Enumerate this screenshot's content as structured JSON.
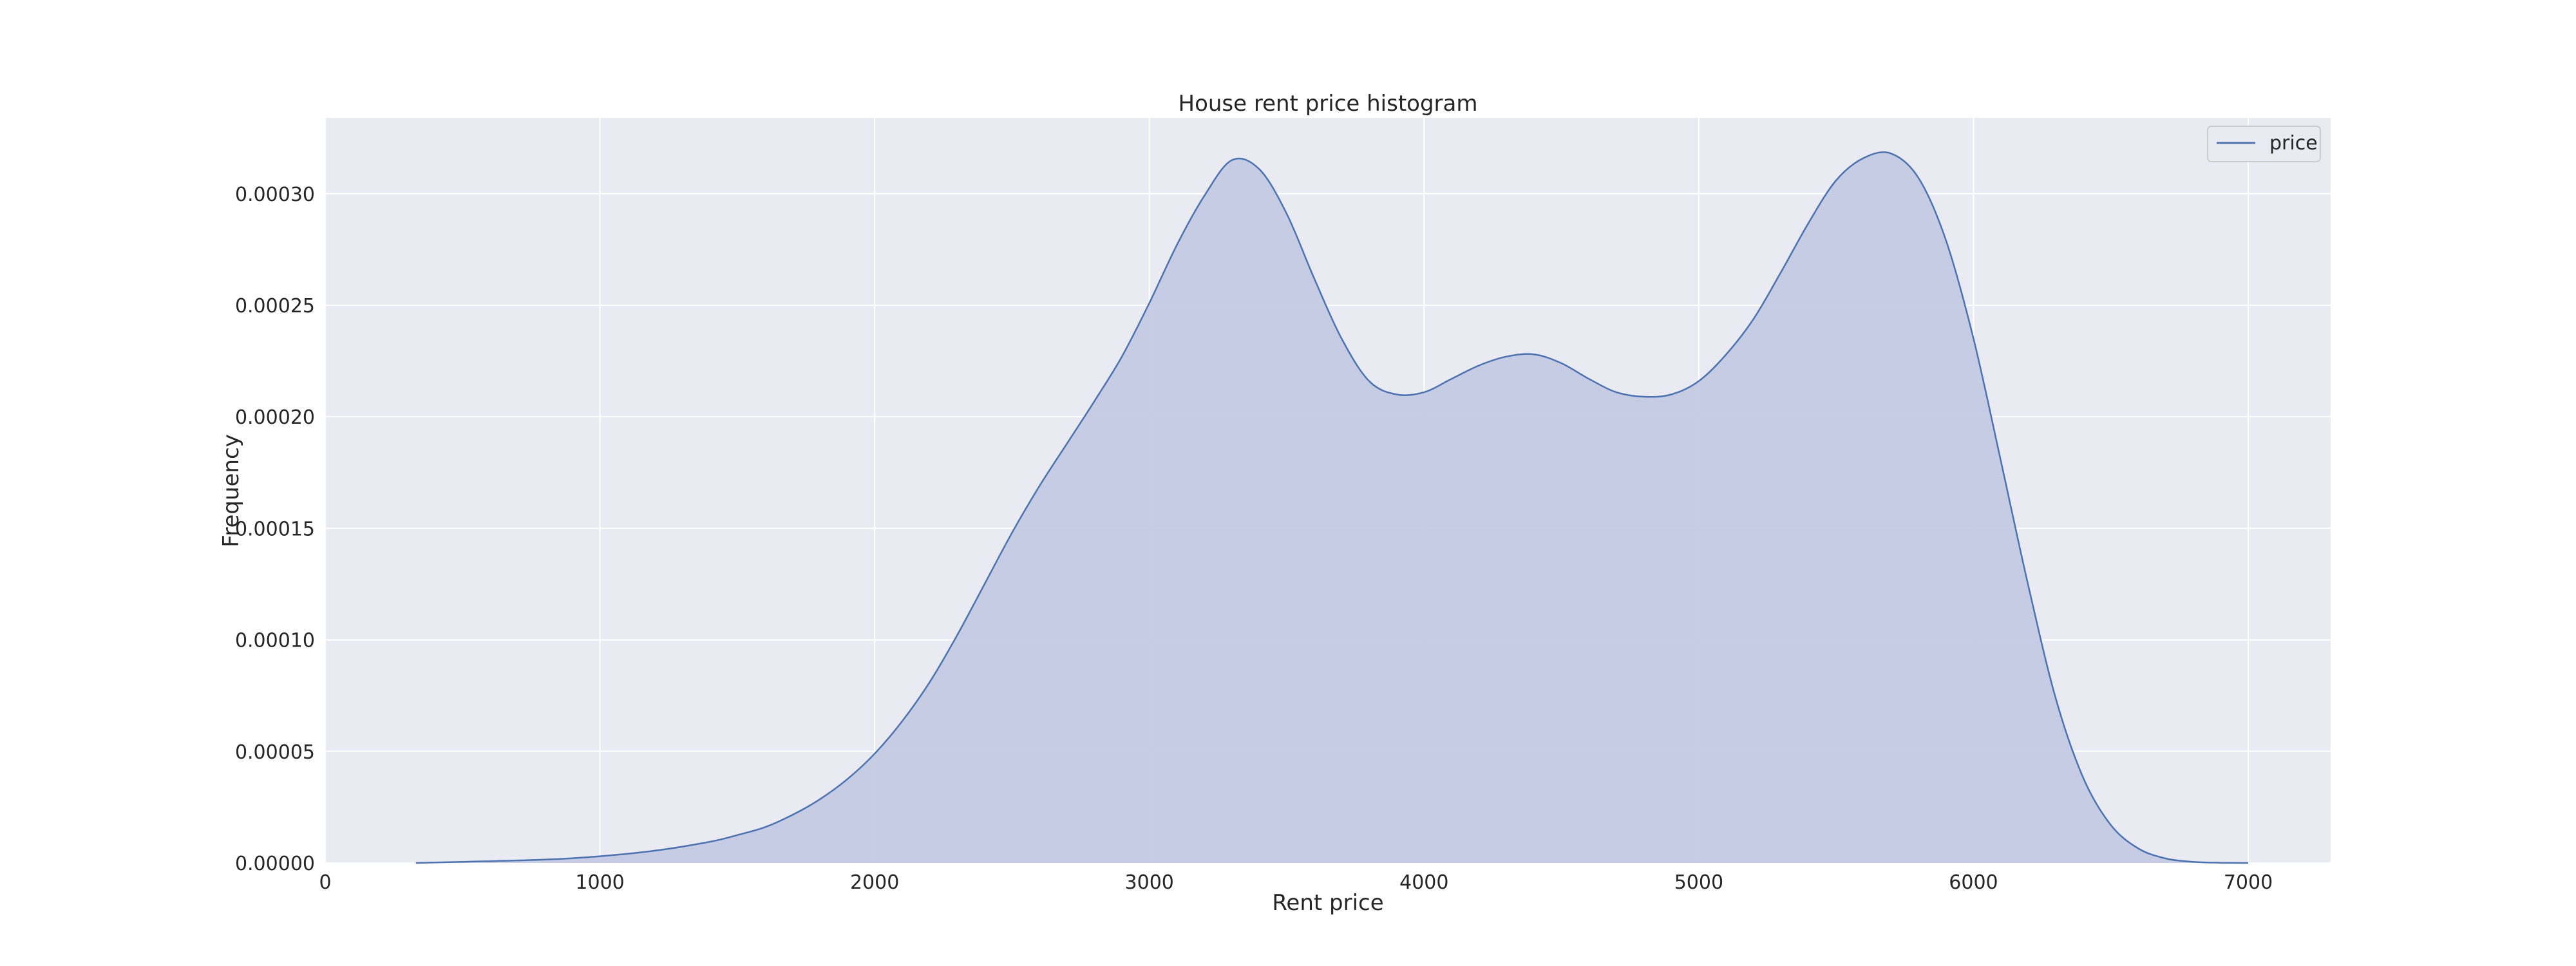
{
  "chart_data": {
    "type": "area",
    "title": "House rent price histogram",
    "xlabel": "Rent price",
    "ylabel": "Frequency",
    "xlim": [
      0,
      7300
    ],
    "ylim": [
      0,
      0.000334
    ],
    "x_ticks": [
      0,
      1000,
      2000,
      3000,
      4000,
      5000,
      6000,
      7000
    ],
    "x_tick_labels": [
      "0",
      "1000",
      "2000",
      "3000",
      "4000",
      "5000",
      "6000",
      "7000"
    ],
    "y_ticks": [
      0,
      5e-05,
      0.0001,
      0.00015,
      0.0002,
      0.00025,
      0.0003
    ],
    "y_tick_labels": [
      "0.00000",
      "0.00005",
      "0.00010",
      "0.00015",
      "0.00020",
      "0.00025",
      "0.00030"
    ],
    "grid": true,
    "legend_position": "top-right",
    "colors": {
      "line": "#4c72b0",
      "fill": "#c3cae3",
      "plot_background": "#eaeaf2",
      "grid": "#ffffff"
    },
    "series": [
      {
        "name": "price",
        "x": [
          330,
          500,
          800,
          1000,
          1200,
          1400,
          1500,
          1600,
          1700,
          1800,
          1900,
          2000,
          2100,
          2200,
          2300,
          2400,
          2500,
          2600,
          2700,
          2800,
          2900,
          3000,
          3100,
          3200,
          3300,
          3400,
          3500,
          3600,
          3700,
          3800,
          3900,
          4000,
          4100,
          4200,
          4300,
          4400,
          4500,
          4600,
          4700,
          4800,
          4900,
          5000,
          5100,
          5200,
          5300,
          5400,
          5500,
          5600,
          5700,
          5800,
          5900,
          6000,
          6100,
          6200,
          6300,
          6400,
          6500,
          6600,
          6700,
          6800,
          6900,
          7000
        ],
        "values": [
          0.0,
          5e-07,
          1.5e-06,
          3e-06,
          5.5e-06,
          9.5e-06,
          1.25e-05,
          1.6e-05,
          2.15e-05,
          2.85e-05,
          3.75e-05,
          4.9e-05,
          6.35e-05,
          8.1e-05,
          0.000102,
          0.000125,
          0.000148,
          0.000169,
          0.000188,
          0.000207,
          0.000227,
          0.000251,
          0.000277,
          0.000299,
          0.000315,
          0.000311,
          0.000291,
          0.000262,
          0.000235,
          0.000216,
          0.00021,
          0.000211,
          0.000217,
          0.000223,
          0.000227,
          0.000228,
          0.000224,
          0.000217,
          0.000211,
          0.000209,
          0.00021,
          0.000216,
          0.000228,
          0.000244,
          0.000265,
          0.000287,
          0.000306,
          0.000316,
          0.000318,
          0.000307,
          0.000279,
          0.000235,
          0.00018,
          0.000124,
          7.35e-05,
          3.8e-05,
          1.7e-05,
          6.5e-06,
          2e-06,
          5e-07,
          1e-07,
          0.0
        ]
      }
    ]
  }
}
